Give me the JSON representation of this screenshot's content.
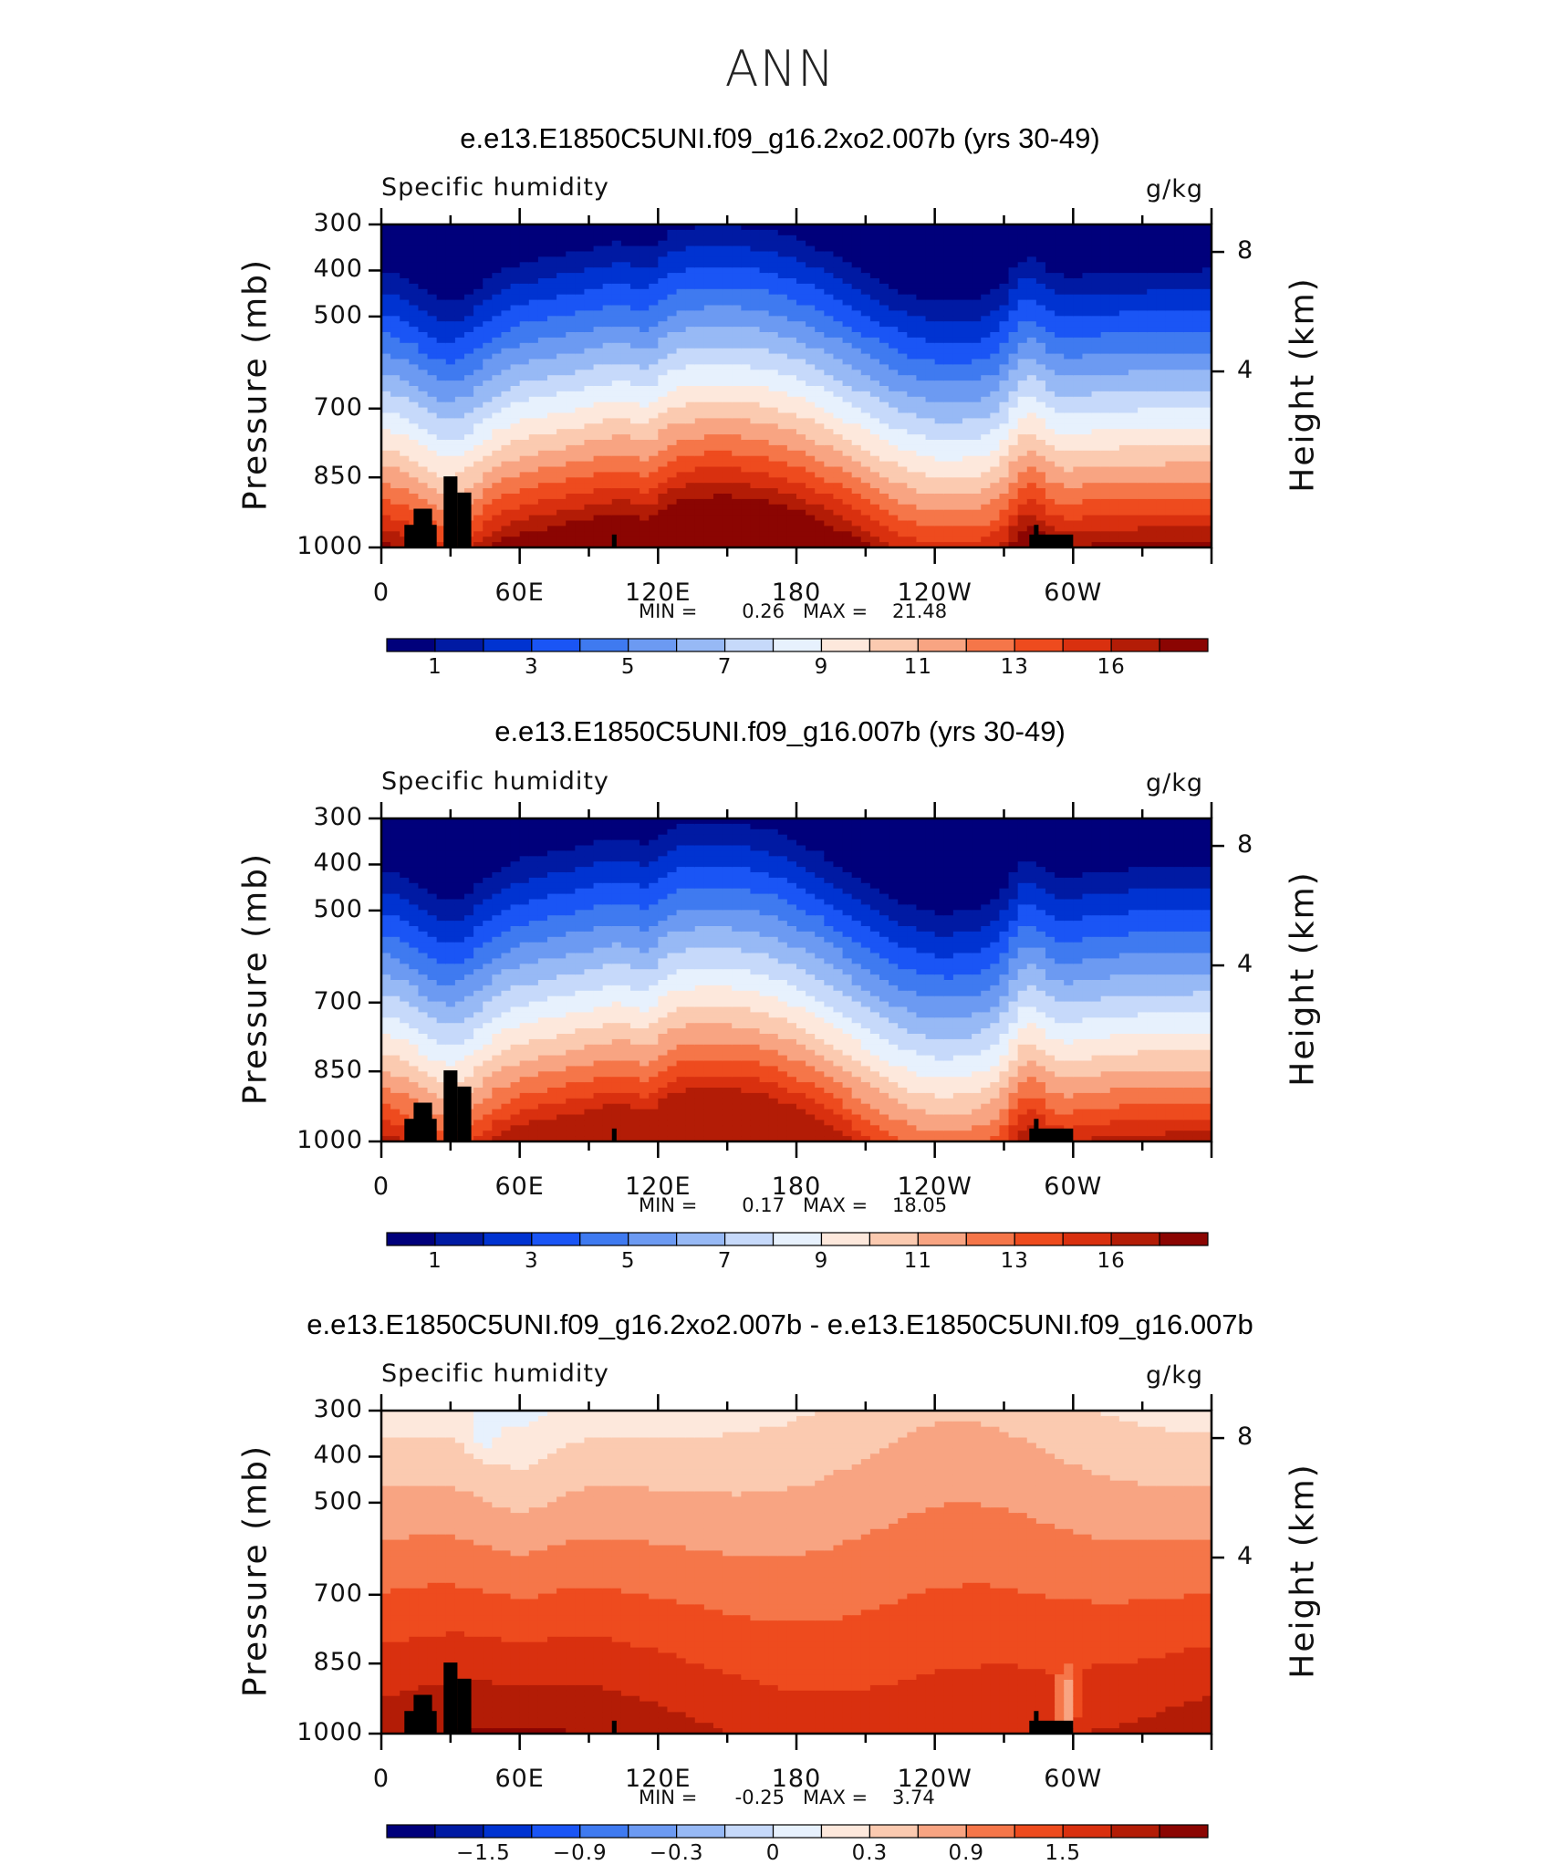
{
  "page_title": "ANN",
  "colors": {
    "abs_scale": [
      "#00007b",
      "#001aa3",
      "#0033d1",
      "#1a55f5",
      "#3f7af0",
      "#6c9af2",
      "#97b9f5",
      "#c6d9fa",
      "#e7f1fd",
      "#fde8dc",
      "#fbcab0",
      "#f8a482",
      "#f57649",
      "#ee4b1e",
      "#d9300f",
      "#b31c06",
      "#8b0502"
    ],
    "diff_scale": [
      "#00007b",
      "#001aa3",
      "#0033d1",
      "#1a55f5",
      "#3f7af0",
      "#6c9af2",
      "#97b9f5",
      "#c6d9fa",
      "#e7f1fd",
      "#fde8dc",
      "#fbcab0",
      "#f8a482",
      "#f57649",
      "#ee4b1e",
      "#d9300f",
      "#b31c06",
      "#8b0502"
    ],
    "land": "#000000"
  },
  "chart_data": [
    {
      "type": "heatmap",
      "title": "e.e13.E1850C5UNI.f09_g16.2xo2.007b (yrs 30-49)",
      "left_label": "Specific humidity",
      "right_label": "g/kg",
      "ylabel": "Pressure (mb)",
      "ylabel_right": "Height (km)",
      "x_ticks": [
        "0",
        "60E",
        "120E",
        "180",
        "120W",
        "60W"
      ],
      "y_ticks": [
        "300",
        "400",
        "500",
        "700",
        "850",
        "1000"
      ],
      "y_ticks_right": [
        "8",
        "4"
      ],
      "min_label": "MIN =",
      "min_value": "0.26",
      "max_label": "MAX =",
      "max_value": "21.48",
      "colorbar_labels": [
        "1",
        "3",
        "5",
        "7",
        "9",
        "11",
        "13",
        "16"
      ],
      "variant": "A"
    },
    {
      "type": "heatmap",
      "title": "e.e13.E1850C5UNI.f09_g16.007b (yrs 30-49)",
      "left_label": "Specific humidity",
      "right_label": "g/kg",
      "ylabel": "Pressure (mb)",
      "ylabel_right": "Height (km)",
      "x_ticks": [
        "0",
        "60E",
        "120E",
        "180",
        "120W",
        "60W"
      ],
      "y_ticks": [
        "300",
        "400",
        "500",
        "700",
        "850",
        "1000"
      ],
      "y_ticks_right": [
        "8",
        "4"
      ],
      "min_label": "MIN =",
      "min_value": "0.17",
      "max_label": "MAX =",
      "max_value": "18.05",
      "colorbar_labels": [
        "1",
        "3",
        "5",
        "7",
        "9",
        "11",
        "13",
        "16"
      ],
      "variant": "B"
    },
    {
      "type": "heatmap",
      "title": "e.e13.E1850C5UNI.f09_g16.2xo2.007b - e.e13.E1850C5UNI.f09_g16.007b",
      "left_label": "Specific humidity",
      "right_label": "g/kg",
      "ylabel": "Pressure (mb)",
      "ylabel_right": "Height (km)",
      "x_ticks": [
        "0",
        "60E",
        "120E",
        "180",
        "120W",
        "60W"
      ],
      "y_ticks": [
        "300",
        "400",
        "500",
        "700",
        "850",
        "1000"
      ],
      "y_ticks_right": [
        "8",
        "4"
      ],
      "min_label": "MIN =",
      "min_value": "-0.25",
      "max_label": "MAX =",
      "max_value": "3.74",
      "colorbar_labels": [
        "-1.5",
        "-0.9",
        "-0.3",
        "0",
        "0.3",
        "0.9",
        "1.5"
      ],
      "variant": "D"
    }
  ]
}
